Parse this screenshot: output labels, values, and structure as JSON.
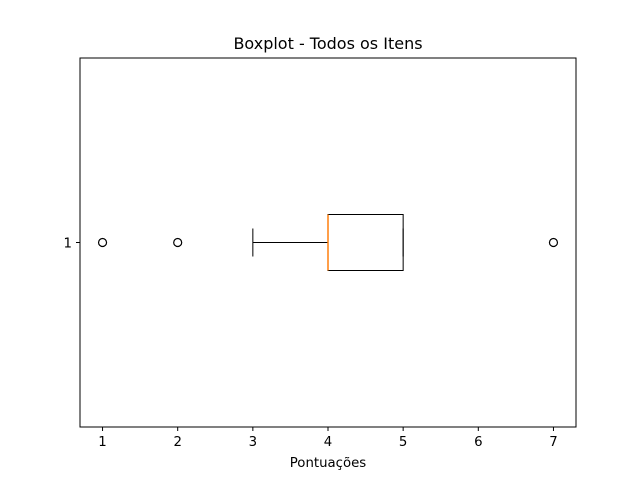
{
  "chart_data": {
    "type": "boxplot",
    "title": "Boxplot - Todos os Itens",
    "xlabel": "Pontuações",
    "ylabel": "",
    "orientation": "horizontal",
    "categories": [
      "1"
    ],
    "xlim": [
      0.7,
      7.3
    ],
    "xticks": [
      1,
      2,
      3,
      4,
      5,
      6,
      7
    ],
    "boxes": [
      {
        "label": "1",
        "whisker_low": 3,
        "q1": 4,
        "median": 4,
        "q3": 5,
        "whisker_high": 5,
        "outliers": [
          1,
          2,
          7
        ]
      }
    ],
    "grid": false,
    "colors": {
      "box": "#000000",
      "median": "#ff7f0e",
      "outlier": "#000000",
      "axes": "#000000"
    }
  }
}
